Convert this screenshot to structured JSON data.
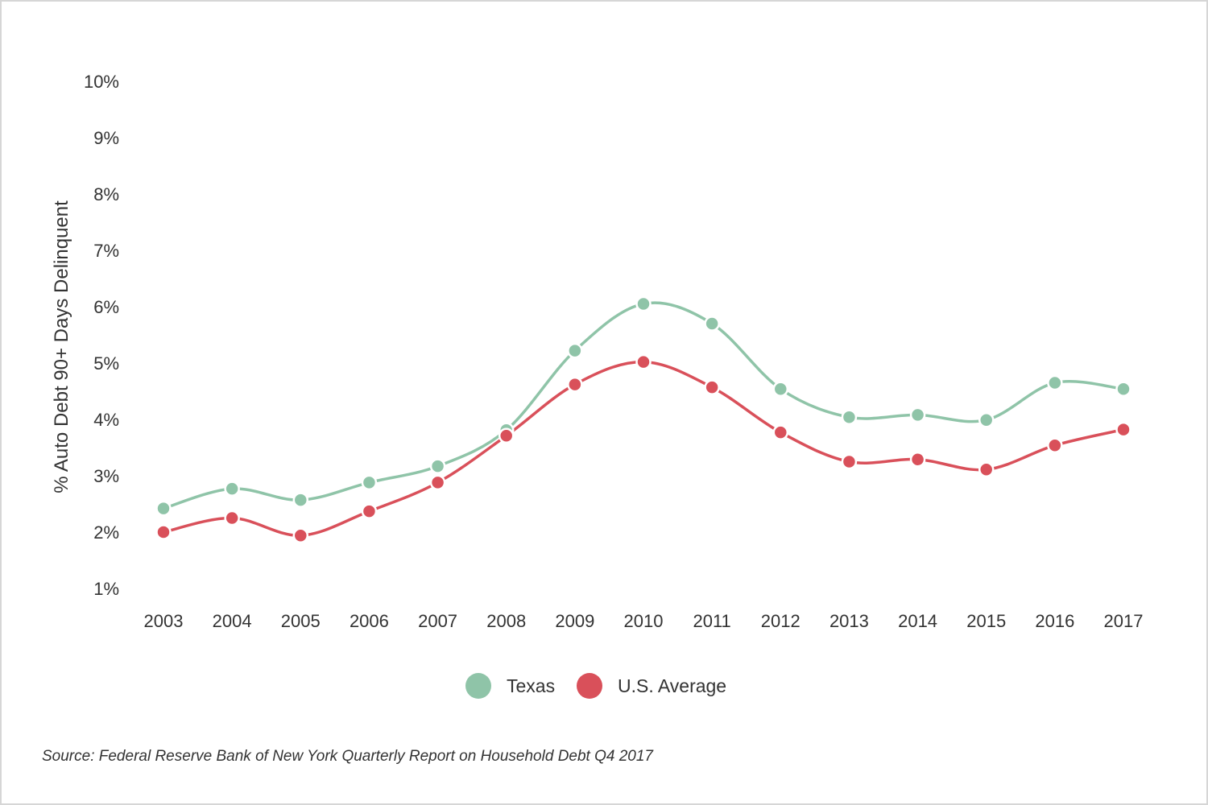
{
  "chart_data": {
    "type": "line",
    "x": [
      "2003",
      "2004",
      "2005",
      "2006",
      "2007",
      "2008",
      "2009",
      "2010",
      "2011",
      "2012",
      "2013",
      "2014",
      "2015",
      "2016",
      "2017"
    ],
    "series": [
      {
        "name": "Texas",
        "color": "#8fc4a8",
        "values": [
          2.42,
          2.77,
          2.57,
          2.88,
          3.17,
          3.81,
          5.22,
          6.05,
          5.7,
          4.54,
          4.04,
          4.08,
          3.99,
          4.65,
          4.54
        ]
      },
      {
        "name": "U.S. Average",
        "color": "#d9505a",
        "values": [
          2.0,
          2.25,
          1.94,
          2.37,
          2.88,
          3.71,
          4.62,
          5.02,
          4.57,
          3.77,
          3.25,
          3.29,
          3.11,
          3.54,
          3.82
        ]
      }
    ],
    "ylabel": "% Auto Debt 90+ Days Delinquent",
    "xlabel": "",
    "ylim": [
      1,
      10
    ],
    "yticks": [
      "1%",
      "2%",
      "3%",
      "4%",
      "5%",
      "6%",
      "7%",
      "8%",
      "9%",
      "10%"
    ],
    "grid": false,
    "legend": "bottom-center"
  },
  "source": "Source: Federal Reserve Bank of New York Quarterly Report on Household Debt Q4 2017"
}
